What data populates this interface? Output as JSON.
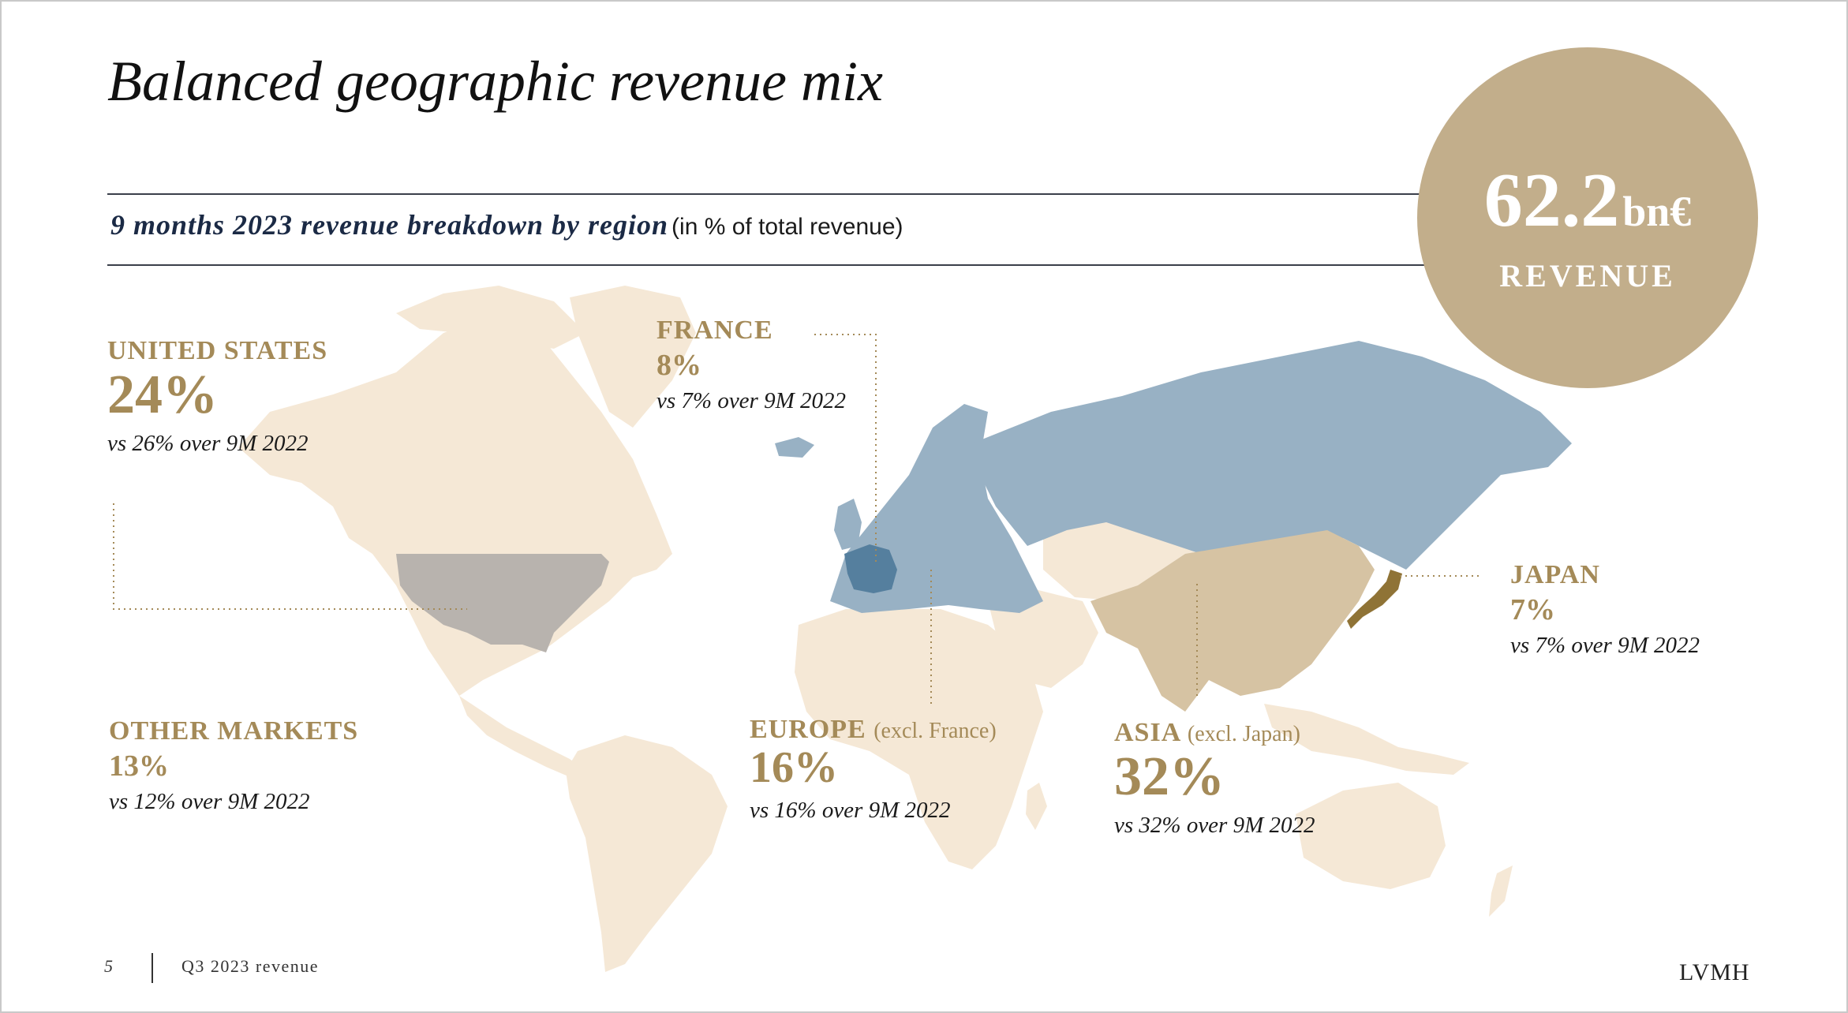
{
  "title": "Balanced geographic revenue mix",
  "subtitle": {
    "main": "9 months 2023 revenue breakdown by region",
    "note": "(in % of total revenue)"
  },
  "callout": {
    "value": "62.2",
    "unit": "bn€",
    "label": "REVENUE"
  },
  "colors": {
    "land": "#f5e8d6",
    "united_states": "#b8b3ae",
    "europe": "#98b1c4",
    "france": "#557f9e",
    "asia": "#d6c3a3",
    "japan": "#8f7336",
    "accent": "#a48a58"
  },
  "chart_data": {
    "type": "choropleth-map",
    "title": "9 months 2023 revenue breakdown by region",
    "unit": "% of total revenue",
    "total_revenue": {
      "value": 62.2,
      "unit": "bn€"
    },
    "regions": [
      {
        "id": "us",
        "name": "UNITED STATES",
        "share": "24%",
        "prior": "vs 26% over 9M 2022",
        "value": 24,
        "prior_value": 26
      },
      {
        "id": "france",
        "name": "FRANCE",
        "share": "8%",
        "prior": "vs 7% over 9M 2022",
        "value": 8,
        "prior_value": 7
      },
      {
        "id": "japan",
        "name": "JAPAN",
        "share": "7%",
        "prior": "vs 7% over 9M 2022",
        "value": 7,
        "prior_value": 7
      },
      {
        "id": "other",
        "name": "OTHER MARKETS",
        "share": "13%",
        "prior": "vs 12% over 9M 2022",
        "value": 13,
        "prior_value": 12
      },
      {
        "id": "europe",
        "name": "EUROPE",
        "qualifier": "(excl. France)",
        "share": "16%",
        "prior": "vs 16% over 9M 2022",
        "value": 16,
        "prior_value": 16
      },
      {
        "id": "asia",
        "name": "ASIA",
        "qualifier": "(excl. Japan)",
        "share": "32%",
        "prior": "vs 32% over 9M 2022",
        "value": 32,
        "prior_value": 32
      }
    ]
  },
  "footer": {
    "page": "5",
    "text": "Q3 2023 revenue",
    "logo": "LVMH"
  }
}
